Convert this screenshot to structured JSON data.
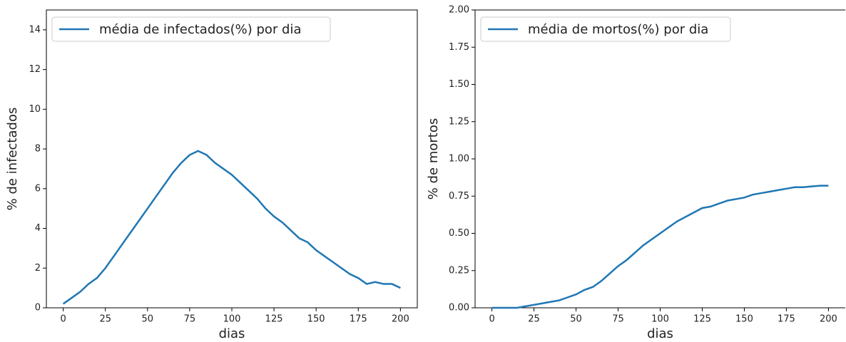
{
  "chart_data": [
    {
      "type": "line",
      "x_label": "dias",
      "y_label": "% de infectados",
      "x": [
        0,
        5,
        10,
        15,
        20,
        25,
        30,
        35,
        40,
        45,
        50,
        55,
        60,
        65,
        70,
        75,
        80,
        85,
        90,
        95,
        100,
        105,
        110,
        115,
        120,
        125,
        130,
        135,
        140,
        145,
        150,
        155,
        160,
        165,
        170,
        175,
        180,
        185,
        190,
        195,
        200
      ],
      "series": [
        {
          "name": "média de infectados(%) por dia",
          "color": "#1f77b4",
          "values": [
            0.2,
            0.5,
            0.8,
            1.2,
            1.5,
            2.0,
            2.6,
            3.2,
            3.8,
            4.4,
            5.0,
            5.6,
            6.2,
            6.8,
            7.3,
            7.7,
            7.9,
            7.7,
            7.3,
            7.0,
            6.7,
            6.3,
            5.9,
            5.5,
            5.0,
            4.6,
            4.3,
            3.9,
            3.5,
            3.3,
            2.9,
            2.6,
            2.3,
            2.0,
            1.7,
            1.5,
            1.2,
            1.3,
            1.2,
            1.2,
            1.0
          ]
        }
      ],
      "xlim": [
        -10,
        210
      ],
      "xticks": [
        0,
        25,
        50,
        75,
        100,
        125,
        150,
        175,
        200
      ],
      "ylim": [
        0,
        15
      ],
      "yticks": [
        0,
        2,
        4,
        6,
        8,
        10,
        12,
        14
      ],
      "legend": "upper left"
    },
    {
      "type": "line",
      "x_label": "dias",
      "y_label": "% de mortos",
      "x": [
        0,
        5,
        10,
        15,
        20,
        25,
        30,
        35,
        40,
        45,
        50,
        55,
        60,
        65,
        70,
        75,
        80,
        85,
        90,
        95,
        100,
        105,
        110,
        115,
        120,
        125,
        130,
        135,
        140,
        145,
        150,
        155,
        160,
        165,
        170,
        175,
        180,
        185,
        190,
        195,
        200
      ],
      "series": [
        {
          "name": "média de mortos(%) por dia",
          "color": "#1f77b4",
          "values": [
            0,
            0,
            0,
            0,
            0.01,
            0.02,
            0.03,
            0.04,
            0.05,
            0.07,
            0.09,
            0.12,
            0.14,
            0.18,
            0.23,
            0.28,
            0.32,
            0.37,
            0.42,
            0.46,
            0.5,
            0.54,
            0.58,
            0.61,
            0.64,
            0.67,
            0.68,
            0.7,
            0.72,
            0.73,
            0.74,
            0.76,
            0.77,
            0.78,
            0.79,
            0.8,
            0.81,
            0.81,
            0.815,
            0.82,
            0.82
          ]
        }
      ],
      "xlim": [
        -10,
        210
      ],
      "xticks": [
        0,
        25,
        50,
        75,
        100,
        125,
        150,
        175,
        200
      ],
      "ylim": [
        0,
        2
      ],
      "yticks": [
        {
          "value": 0,
          "label": "0.00"
        },
        {
          "value": 0.25,
          "label": "0.25"
        },
        {
          "value": 0.5,
          "label": "0.50"
        },
        {
          "value": 0.75,
          "label": "0.75"
        },
        {
          "value": 1,
          "label": "1.00"
        },
        {
          "value": 1.25,
          "label": "1.25"
        },
        {
          "value": 1.5,
          "label": "1.50"
        },
        {
          "value": 1.75,
          "label": "1.75"
        },
        {
          "value": 2,
          "label": "2.00"
        }
      ],
      "legend": "upper left"
    }
  ]
}
